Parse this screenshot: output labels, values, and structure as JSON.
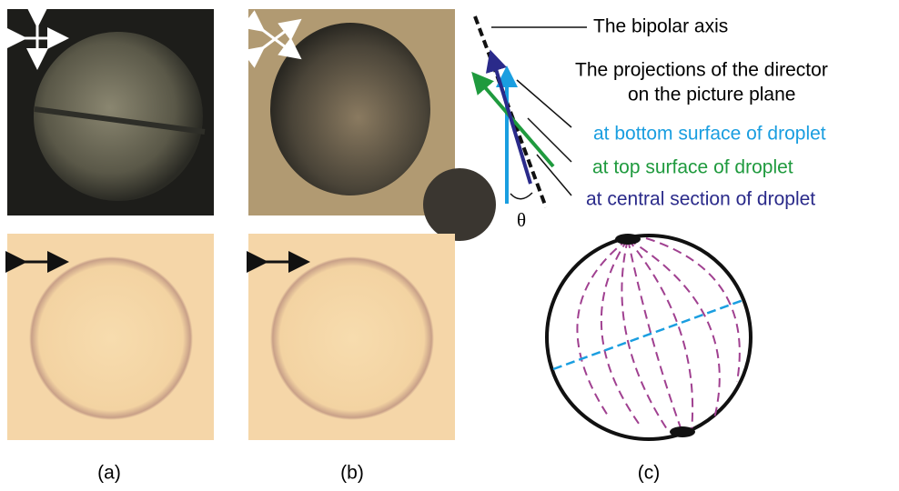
{
  "legend": {
    "axis_label": "The bipolar axis",
    "projections_line1": "The projections of the director",
    "projections_line2": "on the picture plane",
    "bottom": "at bottom surface of droplet",
    "top": "at top surface of droplet",
    "central": "at central section of droplet",
    "angle": "θ"
  },
  "panels": [
    {
      "label": "(a)"
    },
    {
      "label": "(b)"
    },
    {
      "label": "(c)"
    }
  ]
}
